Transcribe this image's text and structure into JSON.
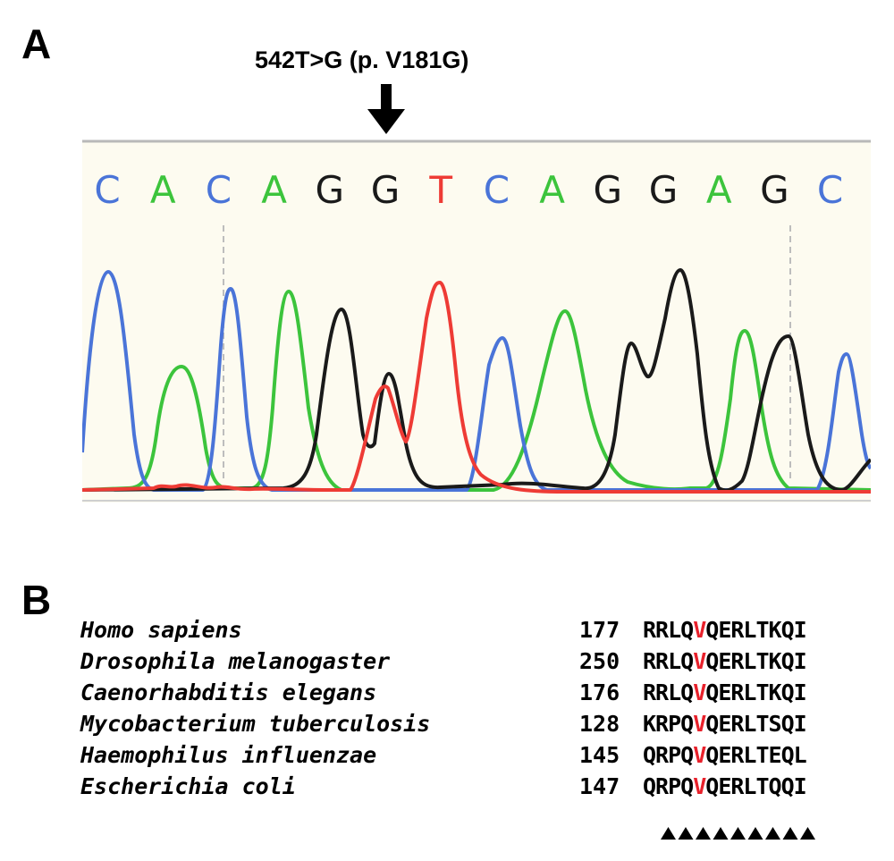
{
  "panel_a": {
    "label": "A",
    "mutation_label": "542T>G (p. V181G)",
    "bases": [
      "C",
      "A",
      "C",
      "A",
      "G",
      "G",
      "T",
      "C",
      "A",
      "G",
      "G",
      "A",
      "G",
      "C"
    ]
  },
  "panel_b": {
    "label": "B",
    "rows": [
      {
        "species": "Homo sapiens",
        "position": "177",
        "pre": "RRLQ",
        "highlight": "V",
        "post": "QERLTKQI"
      },
      {
        "species": "Drosophila melanogaster",
        "position": "250",
        "pre": "RRLQ",
        "highlight": "V",
        "post": "QERLTKQI"
      },
      {
        "species": "Caenorhabditis elegans",
        "position": "176",
        "pre": "RRLQ",
        "highlight": "V",
        "post": "QERLTKQI"
      },
      {
        "species": "Mycobacterium tuberculosis",
        "position": "128",
        "pre": "KRPQ",
        "highlight": "V",
        "post": "QERLTSQI"
      },
      {
        "species": "Haemophilus influenzae",
        "position": "145",
        "pre": "QRPQ",
        "highlight": "V",
        "post": "QERLTEQL"
      },
      {
        "species": "Escherichia coli",
        "position": "147",
        "pre": "QRPQ",
        "highlight": "V",
        "post": "QERLTQQI"
      }
    ],
    "conserved_marker_count": 9
  },
  "colors": {
    "A": "#3cc43c",
    "C": "#4a74d8",
    "G": "#1a1a1a",
    "T": "#ee3b35",
    "highlight": "#e8212b",
    "trace_bg": "#fdfbf0"
  }
}
